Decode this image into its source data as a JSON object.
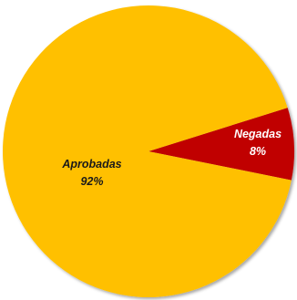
{
  "chart_data": {
    "type": "pie",
    "slices": [
      {
        "label": "Aprobadas",
        "value": 92,
        "display": "92%",
        "color": "#FFC000"
      },
      {
        "label": "Negadas",
        "value": 8,
        "display": "8%",
        "color": "#C00000"
      }
    ],
    "colors": {
      "label_dark": "#1a1a1a",
      "label_light": "#ffffff"
    }
  }
}
